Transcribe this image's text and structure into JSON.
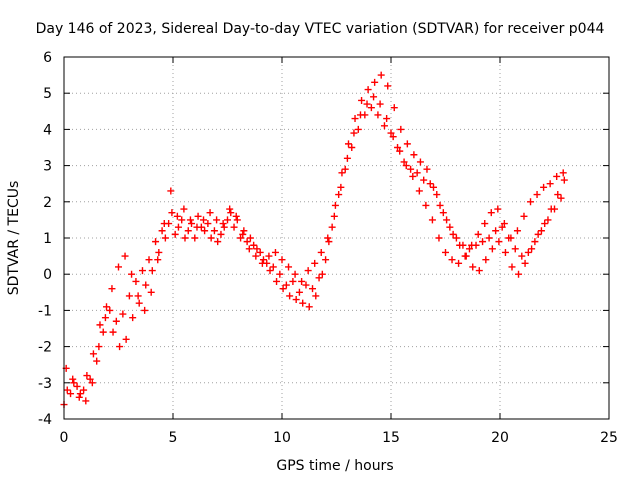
{
  "chart_data": {
    "type": "scatter",
    "title": "Day 146 of 2023, Sidereal Day-to-day VTEC variation (SDTVAR) for receiver p044",
    "xlabel": "GPS time / hours",
    "ylabel": "SDTVAR / TECUs",
    "xlim": [
      0,
      25
    ],
    "ylim": [
      -4,
      6
    ],
    "xticks": [
      "0",
      "5",
      "10",
      "15",
      "20",
      "25"
    ],
    "yticks": [
      "-4",
      "-3",
      "-2",
      "-1",
      "0",
      "1",
      "2",
      "3",
      "4",
      "5",
      "6"
    ],
    "grid": true,
    "marker": "plus",
    "color": "#ff0000",
    "series": [
      {
        "name": "SDTVAR",
        "x": [
          0,
          0.3,
          0.6,
          0.9,
          1.2,
          1.5,
          1.8,
          2.1,
          2.4,
          2.7,
          3.0,
          3.3,
          3.6,
          3.9,
          4.2,
          4.5,
          4.8,
          5.1,
          5.4,
          5.7,
          6.0,
          6.3,
          6.6,
          6.9,
          7.2,
          7.5,
          7.8,
          8.1,
          8.4,
          8.7,
          9.0,
          9.3,
          9.6,
          9.9,
          10.2,
          10.5,
          10.8,
          11.1,
          11.4,
          11.7,
          12.0,
          12.3,
          12.6,
          12.9,
          13.2,
          13.5,
          13.8,
          14.1,
          14.4,
          14.7,
          15.0,
          15.3,
          15.6,
          15.9,
          16.2,
          16.5,
          16.8,
          17.1,
          17.4,
          17.7,
          18.0,
          18.3,
          18.6,
          18.9,
          19.2,
          19.5,
          19.8,
          20.1,
          20.4,
          20.7,
          21.0,
          21.3,
          21.6,
          21.9,
          22.2,
          22.5,
          22.8
        ],
        "y": [
          -3.6,
          -3.3,
          -3.1,
          -3.2,
          -2.9,
          -2.4,
          -1.6,
          -1.0,
          -1.3,
          -1.1,
          -0.6,
          -0.2,
          0.1,
          0.4,
          0.9,
          1.2,
          1.4,
          1.1,
          1.5,
          1.2,
          1.0,
          1.3,
          1.4,
          1.2,
          1.1,
          1.5,
          1.3,
          1.0,
          0.9,
          0.8,
          0.6,
          0.3,
          0.2,
          0.0,
          -0.3,
          -0.2,
          -0.5,
          -0.3,
          -0.4,
          -0.1,
          0.4,
          1.3,
          2.2,
          2.9,
          3.5,
          4.0,
          4.4,
          4.6,
          4.4,
          4.1,
          3.9,
          3.5,
          3.1,
          2.9,
          2.8,
          2.6,
          2.5,
          2.2,
          1.7,
          1.3,
          1.0,
          0.8,
          0.7,
          0.8,
          0.9,
          1.0,
          1.2,
          1.3,
          1.0,
          0.7,
          0.5,
          0.6,
          0.9,
          1.2,
          1.5,
          1.8,
          2.1
        ]
      },
      {
        "name": "SDTVAR",
        "x": [
          0.15,
          0.45,
          0.75,
          1.05,
          1.35,
          1.65,
          1.95,
          2.25,
          2.55,
          2.85,
          3.15,
          3.45,
          3.75,
          4.05,
          4.35,
          4.65,
          4.95,
          5.25,
          5.55,
          5.85,
          6.15,
          6.45,
          6.75,
          7.05,
          7.35,
          7.65,
          7.95,
          8.25,
          8.55,
          8.85,
          9.15,
          9.45,
          9.75,
          10.05,
          10.35,
          10.65,
          10.95,
          11.25,
          11.55,
          11.85,
          12.15,
          12.45,
          12.75,
          13.05,
          13.35,
          13.65,
          13.95,
          14.25,
          14.55,
          14.85,
          15.15,
          15.45,
          15.75,
          16.05,
          16.35,
          16.65,
          16.95,
          17.25,
          17.55,
          17.85,
          18.15,
          18.45,
          18.75,
          19.05,
          19.35,
          19.65,
          19.95,
          20.25,
          20.55,
          20.85,
          21.15,
          21.45,
          21.75,
          22.05,
          22.35,
          22.65,
          22.95
        ],
        "y": [
          -3.2,
          -3.0,
          -3.3,
          -2.8,
          -2.2,
          -1.4,
          -0.9,
          -1.6,
          -2.0,
          -1.8,
          -1.2,
          -0.8,
          -0.3,
          0.1,
          0.6,
          1.0,
          1.7,
          1.3,
          1.0,
          1.4,
          1.6,
          1.2,
          1.0,
          0.9,
          1.3,
          1.7,
          1.5,
          1.2,
          1.0,
          0.7,
          0.4,
          0.1,
          -0.2,
          -0.4,
          -0.6,
          -0.7,
          -0.8,
          -0.9,
          -0.6,
          0.0,
          0.9,
          1.9,
          2.8,
          3.6,
          4.3,
          4.8,
          5.1,
          5.3,
          5.5,
          5.2,
          4.6,
          4.0,
          3.6,
          3.3,
          3.1,
          2.9,
          2.4,
          1.9,
          1.5,
          1.1,
          0.8,
          0.5,
          0.2,
          0.1,
          0.4,
          0.7,
          0.9,
          0.6,
          0.2,
          0.0,
          0.3,
          0.7,
          1.1,
          1.4,
          1.8,
          2.2,
          2.6
        ]
      },
      {
        "name": "SDTVAR",
        "x": [
          0.1,
          0.4,
          0.7,
          1.0,
          1.3,
          1.6,
          1.9,
          2.2,
          2.5,
          2.8,
          3.1,
          3.4,
          3.7,
          4.0,
          4.3,
          4.6,
          4.9,
          5.2,
          5.5,
          5.8,
          6.1,
          6.4,
          6.7,
          7.0,
          7.3,
          7.6,
          7.9,
          8.2,
          8.5,
          8.8,
          9.1,
          9.4,
          9.7,
          10.0,
          10.3,
          10.6,
          10.9,
          11.2,
          11.5,
          11.8,
          12.1,
          12.4,
          12.7,
          13.0,
          13.3,
          13.6,
          13.9,
          14.2,
          14.5,
          14.8,
          15.1,
          15.4,
          15.7,
          16.0,
          16.3,
          16.6,
          16.9,
          17.2,
          17.5,
          17.8,
          18.1,
          18.4,
          18.7,
          19.0,
          19.3,
          19.6,
          19.9,
          20.2,
          20.5,
          20.8,
          21.1,
          21.4,
          21.7,
          22.0,
          22.3,
          22.6,
          22.9
        ],
        "y": [
          -2.6,
          -2.9,
          -3.4,
          -3.5,
          -3.0,
          -2.0,
          -1.2,
          -0.4,
          0.2,
          0.5,
          0.0,
          -0.6,
          -1.0,
          -0.5,
          0.4,
          1.4,
          2.3,
          1.6,
          1.8,
          1.5,
          1.3,
          1.5,
          1.7,
          1.5,
          1.4,
          1.8,
          1.6,
          1.1,
          0.7,
          0.5,
          0.3,
          0.5,
          0.6,
          0.4,
          0.2,
          0.0,
          -0.2,
          0.1,
          0.3,
          0.6,
          1.0,
          1.6,
          2.4,
          3.2,
          3.9,
          4.4,
          4.7,
          4.9,
          4.7,
          4.3,
          3.8,
          3.4,
          3.0,
          2.7,
          2.3,
          1.9,
          1.5,
          1.0,
          0.6,
          0.4,
          0.3,
          0.5,
          0.8,
          1.1,
          1.4,
          1.7,
          1.8,
          1.4,
          1.0,
          1.2,
          1.6,
          2.0,
          2.2,
          2.4,
          2.5,
          2.7,
          2.8
        ]
      }
    ]
  }
}
